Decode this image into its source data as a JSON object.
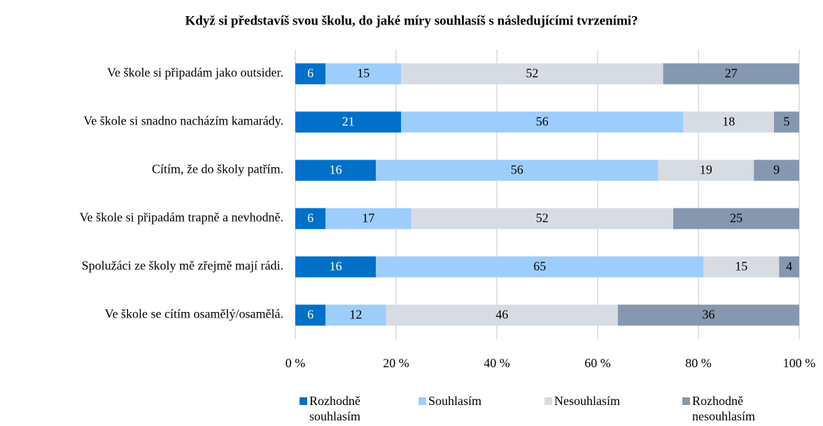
{
  "chart_data": {
    "type": "stacked_bar_horizontal",
    "title": "Když si představíš svou školu, do jaké míry souhlasíš s následujícími tvrzeními?",
    "categories": [
      "Ve škole si připadám jako outsider.",
      "Ve škole si snadno nacházím kamarády.",
      "Cítím, že do školy patřím.",
      "Ve škole si připadám trapně a nevhodně.",
      "Spolužáci ze školy mě zřejmě mají rádi.",
      "Ve škole se cítím osamělý/osamělá."
    ],
    "series": [
      {
        "name": "Rozhodně souhlasím",
        "color": "#0070c8",
        "values": [
          6,
          21,
          16,
          6,
          16,
          6
        ]
      },
      {
        "name": "Souhlasím",
        "color": "#9dcdfb",
        "values": [
          15,
          56,
          56,
          17,
          65,
          12
        ]
      },
      {
        "name": "Nesouhlasím",
        "color": "#d7dce3",
        "values": [
          52,
          18,
          19,
          52,
          15,
          46
        ]
      },
      {
        "name": "Rozhodně nesouhlasím",
        "color": "#8697b0",
        "values": [
          27,
          5,
          9,
          25,
          4,
          36
        ]
      }
    ],
    "xlim": [
      0,
      100
    ],
    "xticks": [
      {
        "value": 0,
        "label": "0 %"
      },
      {
        "value": 20,
        "label": "20 %"
      },
      {
        "value": 40,
        "label": "40 %"
      },
      {
        "value": 60,
        "label": "60 %"
      },
      {
        "value": 80,
        "label": "80 %"
      },
      {
        "value": 100,
        "label": "100 %"
      }
    ],
    "grid": true,
    "legend": "bottom"
  }
}
